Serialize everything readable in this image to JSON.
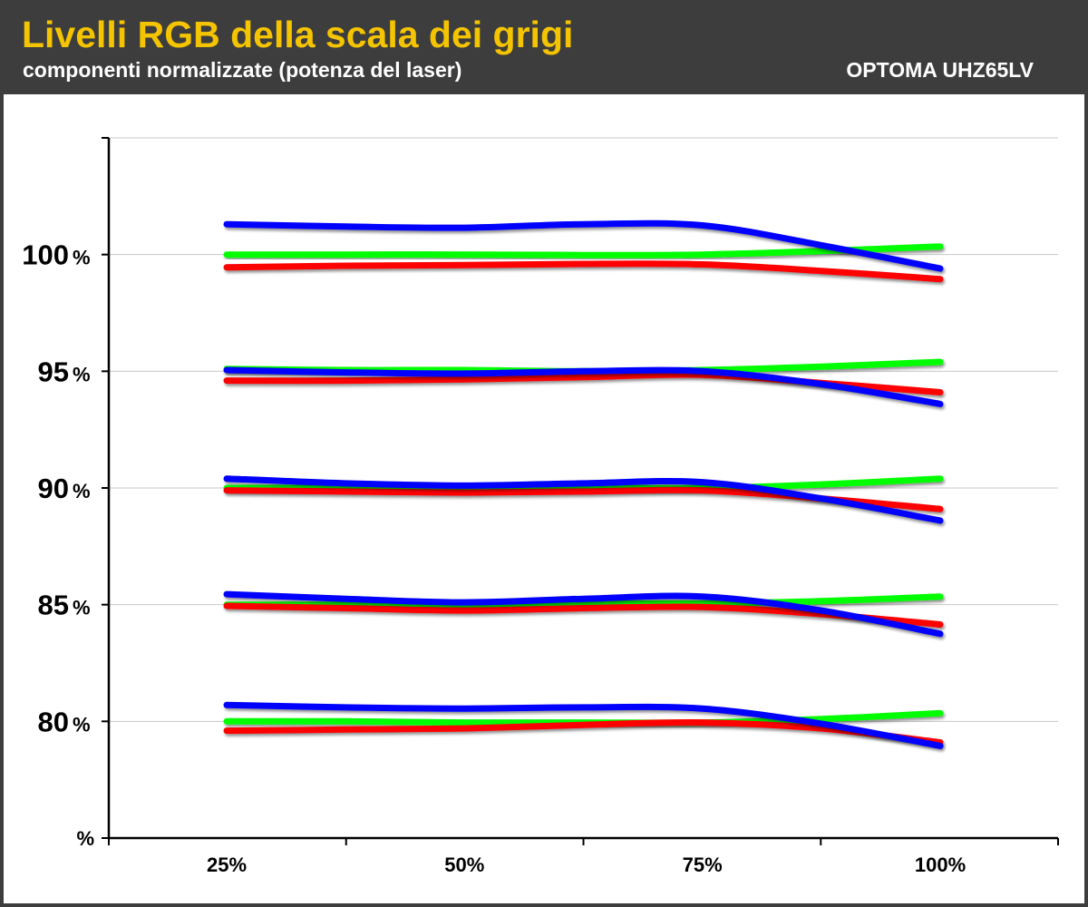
{
  "header": {
    "title": "Livelli RGB della scala dei grigi",
    "subtitle": "componenti normalizzate (potenza del laser)",
    "brand": "OPTOMA UHZ65LV"
  },
  "chart_data": {
    "type": "line",
    "title": "Livelli RGB della scala dei grigi",
    "subtitle": "componenti normalizzate (potenza del laser)",
    "xlabel": "",
    "ylabel": "",
    "categories": [
      "25%",
      "50%",
      "75%",
      "100%"
    ],
    "y_tick_values": [
      80,
      85,
      90,
      95,
      100
    ],
    "y_tick_labels": [
      "80",
      "85",
      "90",
      "95",
      "100"
    ],
    "y_unit": "%",
    "ylim": [
      75,
      105
    ],
    "grid": true,
    "legend": "none",
    "colors": {
      "red": "#ff0000",
      "green": "#00ff00",
      "blue": "#0000ff"
    },
    "x": [
      25,
      37.5,
      50,
      62.5,
      75,
      87.5,
      100
    ],
    "groups": [
      {
        "level": 100,
        "red": [
          99.45,
          99.52,
          99.55,
          99.6,
          99.58,
          99.3,
          98.95
        ],
        "green": [
          100.0,
          100.0,
          100.0,
          99.98,
          100.0,
          100.15,
          100.35
        ],
        "blue": [
          101.3,
          101.2,
          101.15,
          101.3,
          101.25,
          100.4,
          99.4
        ]
      },
      {
        "level": 95,
        "red": [
          94.6,
          94.6,
          94.65,
          94.75,
          94.85,
          94.5,
          94.1
        ],
        "green": [
          95.1,
          95.05,
          95.05,
          95.0,
          95.05,
          95.2,
          95.4
        ],
        "blue": [
          95.05,
          94.95,
          94.9,
          95.0,
          95.0,
          94.45,
          93.6
        ]
      },
      {
        "level": 90,
        "red": [
          89.9,
          89.85,
          89.8,
          89.85,
          89.9,
          89.55,
          89.1
        ],
        "green": [
          90.0,
          90.0,
          89.95,
          90.0,
          90.0,
          90.15,
          90.4
        ],
        "blue": [
          90.4,
          90.2,
          90.1,
          90.2,
          90.25,
          89.55,
          88.6
        ]
      },
      {
        "level": 85,
        "red": [
          84.95,
          84.85,
          84.75,
          84.85,
          84.9,
          84.6,
          84.15
        ],
        "green": [
          85.0,
          85.0,
          85.0,
          85.05,
          85.05,
          85.15,
          85.35
        ],
        "blue": [
          85.45,
          85.25,
          85.1,
          85.25,
          85.35,
          84.75,
          83.75
        ]
      },
      {
        "level": 80,
        "red": [
          79.6,
          79.65,
          79.7,
          79.85,
          79.95,
          79.7,
          79.1
        ],
        "green": [
          80.0,
          80.0,
          79.95,
          79.95,
          79.95,
          80.1,
          80.35
        ],
        "blue": [
          80.7,
          80.6,
          80.55,
          80.6,
          80.55,
          79.9,
          78.95
        ]
      }
    ]
  }
}
